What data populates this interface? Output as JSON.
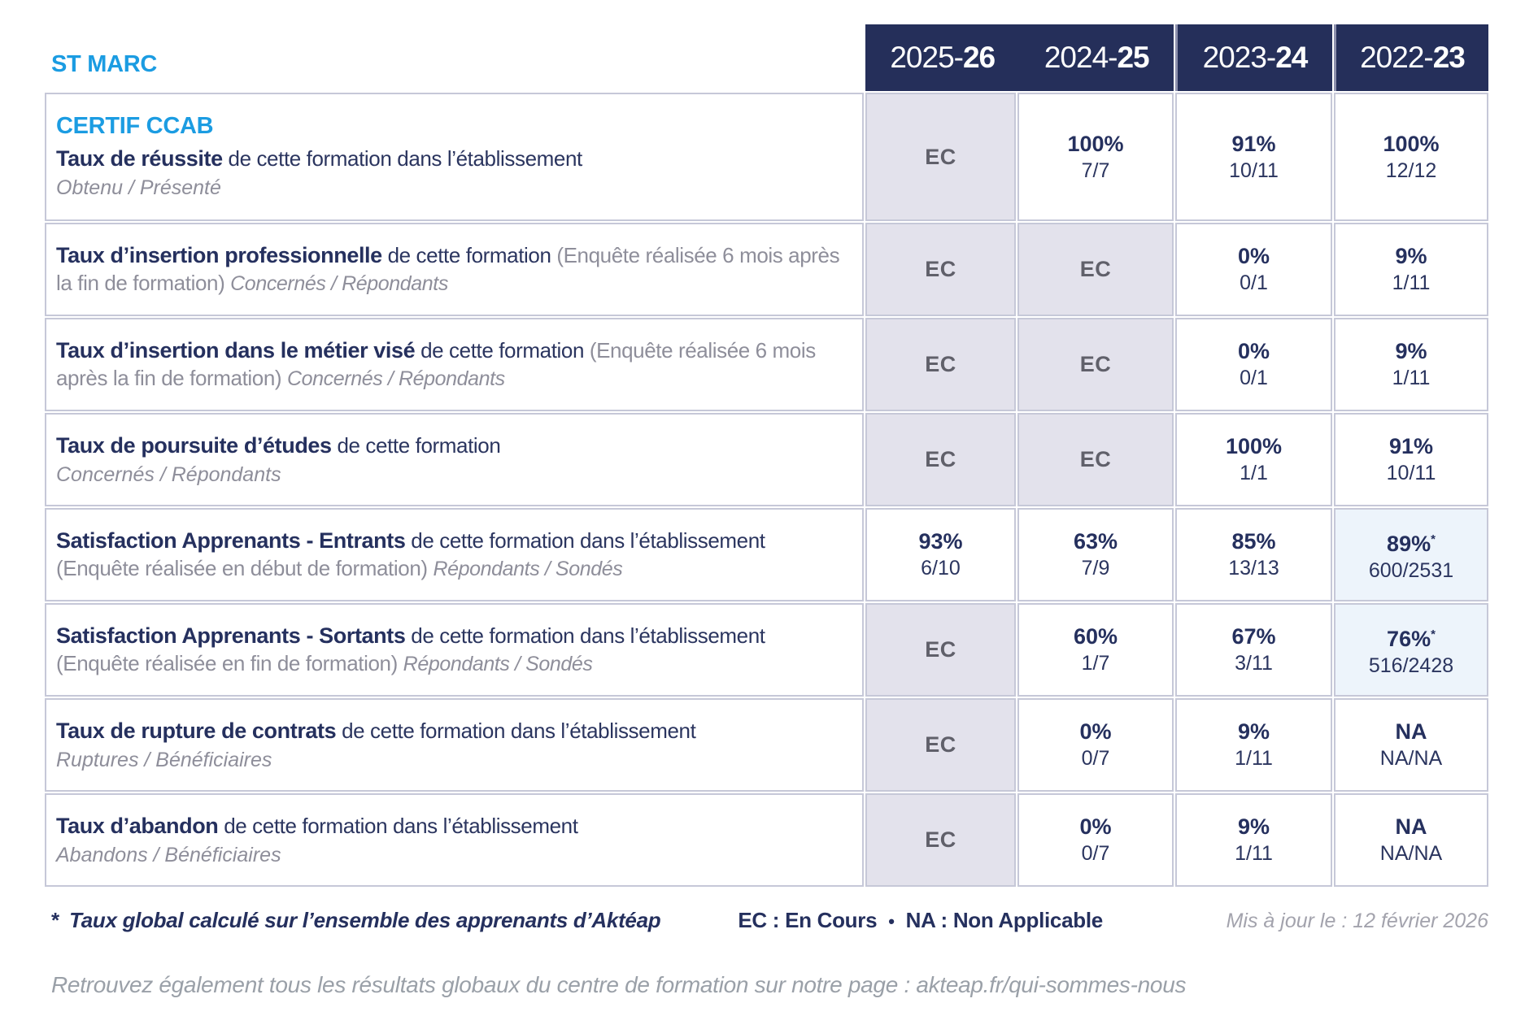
{
  "header": {
    "site_label": "ST MARC",
    "program_label": "CERTIF CCAB",
    "columns": [
      {
        "prefix": "2025-",
        "bold": "26"
      },
      {
        "prefix": "2024-",
        "bold": "25"
      },
      {
        "prefix": "2023-",
        "bold": "24"
      },
      {
        "prefix": "2022-",
        "bold": "23"
      }
    ]
  },
  "rows": [
    {
      "title_bold": "Taux de réussite",
      "title_rest": "de cette formation dans l’établissement",
      "subtitle": "Obtenu / Présenté",
      "cells": [
        {
          "kind": "ec",
          "text": "EC"
        },
        {
          "kind": "value",
          "pct": "100%",
          "ratio": "7/7"
        },
        {
          "kind": "value",
          "pct": "91%",
          "ratio": "10/11"
        },
        {
          "kind": "value",
          "pct": "100%",
          "ratio": "12/12"
        }
      ]
    },
    {
      "title_bold": "Taux d’insertion professionnelle",
      "title_rest": "de cette formation",
      "note": "(Enquête réalisée 6 mois après la fin de formation)",
      "subtitle": "Concernés / Répondants",
      "cells": [
        {
          "kind": "ec",
          "text": "EC"
        },
        {
          "kind": "ec",
          "text": "EC"
        },
        {
          "kind": "value",
          "pct": "0%",
          "ratio": "0/1"
        },
        {
          "kind": "value",
          "pct": "9%",
          "ratio": "1/11"
        }
      ]
    },
    {
      "title_bold": "Taux d’insertion dans le métier visé",
      "title_rest": "de cette formation",
      "note": "(Enquête réalisée 6 mois après la fin de formation)",
      "subtitle": "Concernés / Répondants",
      "cells": [
        {
          "kind": "ec",
          "text": "EC"
        },
        {
          "kind": "ec",
          "text": "EC"
        },
        {
          "kind": "value",
          "pct": "0%",
          "ratio": "0/1"
        },
        {
          "kind": "value",
          "pct": "9%",
          "ratio": "1/11"
        }
      ]
    },
    {
      "title_bold": "Taux de poursuite d’études",
      "title_rest": "de cette formation",
      "subtitle": "Concernés / Répondants",
      "cells": [
        {
          "kind": "ec",
          "text": "EC"
        },
        {
          "kind": "ec",
          "text": "EC"
        },
        {
          "kind": "value",
          "pct": "100%",
          "ratio": "1/1"
        },
        {
          "kind": "value",
          "pct": "91%",
          "ratio": "10/11"
        }
      ]
    },
    {
      "title_bold": "Satisfaction Apprenants - Entrants",
      "title_rest": "de cette formation dans l’établissement",
      "note": "(Enquête réalisée en début de formation)",
      "subtitle": "Répondants / Sondés",
      "cells": [
        {
          "kind": "value",
          "pct": "93%",
          "ratio": "6/10"
        },
        {
          "kind": "value",
          "pct": "63%",
          "ratio": "7/9"
        },
        {
          "kind": "value",
          "pct": "85%",
          "ratio": "13/13"
        },
        {
          "kind": "value",
          "pct": "89%",
          "star": "*",
          "ratio": "600/2531",
          "highlight": true
        }
      ]
    },
    {
      "title_bold": "Satisfaction Apprenants - Sortants",
      "title_rest": "de cette formation dans l’établissement",
      "note": "(Enquête réalisée en fin de formation)",
      "subtitle": "Répondants / Sondés",
      "cells": [
        {
          "kind": "ec",
          "text": "EC"
        },
        {
          "kind": "value",
          "pct": "60%",
          "ratio": "1/7"
        },
        {
          "kind": "value",
          "pct": "67%",
          "ratio": "3/11"
        },
        {
          "kind": "value",
          "pct": "76%",
          "star": "*",
          "ratio": "516/2428",
          "highlight": true
        }
      ]
    },
    {
      "title_bold": "Taux de rupture de contrats",
      "title_rest": "de cette formation dans l’établissement",
      "subtitle": "Ruptures / Bénéficiaires",
      "cells": [
        {
          "kind": "ec",
          "text": "EC"
        },
        {
          "kind": "value",
          "pct": "0%",
          "ratio": "0/7"
        },
        {
          "kind": "value",
          "pct": "9%",
          "ratio": "1/11"
        },
        {
          "kind": "value",
          "pct": "NA",
          "ratio": "NA/NA"
        }
      ]
    },
    {
      "title_bold": "Taux d’abandon",
      "title_rest": "de cette formation dans l’établissement",
      "subtitle": "Abandons / Bénéficiaires",
      "cells": [
        {
          "kind": "ec",
          "text": "EC"
        },
        {
          "kind": "value",
          "pct": "0%",
          "ratio": "0/7"
        },
        {
          "kind": "value",
          "pct": "9%",
          "ratio": "1/11"
        },
        {
          "kind": "value",
          "pct": "NA",
          "ratio": "NA/NA"
        }
      ]
    }
  ],
  "footer": {
    "star": "*",
    "footnote": "Taux global calculé sur l’ensemble des apprenants d’Aktéap",
    "legend_ec": "EC : En Cours",
    "bullet": "•",
    "legend_na": "NA : Non Applicable",
    "updated": "Mis à jour le : 12 février 2026",
    "bottom_note": "Retrouvez également tous les résultats globaux du centre de formation sur notre page : akteap.fr/qui-sommes-nous"
  }
}
